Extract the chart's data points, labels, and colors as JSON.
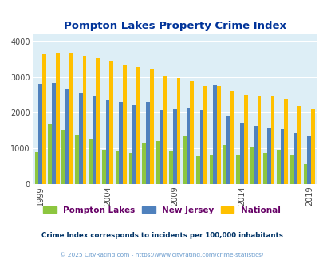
{
  "title": "Pompton Lakes Property Crime Index",
  "years": [
    1999,
    2000,
    2001,
    2002,
    2003,
    2004,
    2005,
    2006,
    2007,
    2008,
    2009,
    2010,
    2011,
    2012,
    2013,
    2014,
    2015,
    2016,
    2017,
    2018,
    2019,
    2020
  ],
  "pompton_lakes": [
    900,
    1700,
    1520,
    1360,
    1260,
    970,
    940,
    880,
    1140,
    1210,
    930,
    1330,
    790,
    800,
    1100,
    830,
    1050,
    860,
    950,
    800,
    560,
    null
  ],
  "new_jersey": [
    2780,
    2840,
    2650,
    2540,
    2470,
    2350,
    2310,
    2220,
    2310,
    2080,
    2100,
    2150,
    2070,
    2760,
    1900,
    1720,
    1620,
    1560,
    1550,
    1420,
    1350,
    null
  ],
  "national": [
    3640,
    3670,
    3660,
    3600,
    3530,
    3450,
    3350,
    3290,
    3220,
    3040,
    2960,
    2890,
    2740,
    2750,
    2610,
    2510,
    2480,
    2450,
    2380,
    2190,
    2100,
    null
  ],
  "color_pompton": "#8dc63f",
  "color_nj": "#4f81bd",
  "color_national": "#ffc000",
  "bg_color": "#ddeef6",
  "title_color": "#003399",
  "legend_label_color": "#660066",
  "subtitle_color": "#003366",
  "footer_color": "#6699cc",
  "ylabel_ticks": [
    0,
    1000,
    2000,
    3000,
    4000
  ],
  "xtick_years": [
    1999,
    2004,
    2009,
    2014,
    2019
  ],
  "ylim": [
    0,
    4200
  ]
}
